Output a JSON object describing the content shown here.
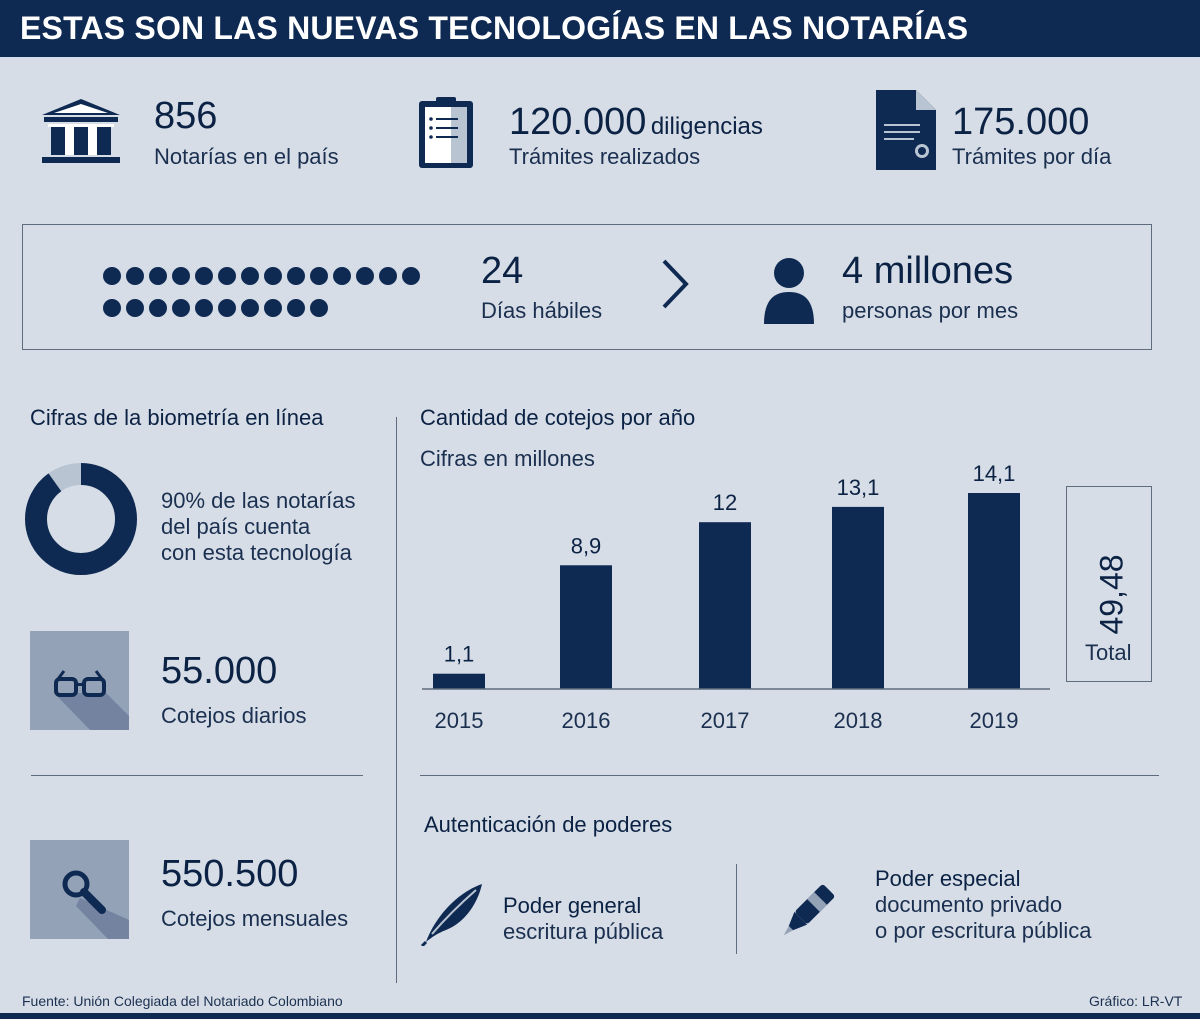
{
  "title": "ESTAS SON LAS NUEVAS TECNOLOGÍAS EN LAS NOTARÍAS",
  "stats": {
    "notarias": {
      "value": "856",
      "label": "Notarías en el país",
      "icon": "courthouse-icon"
    },
    "diligencias": {
      "value": "120.000",
      "unit": "diligencias",
      "label": "Trámites realizados",
      "icon": "clipboard-icon"
    },
    "tramites_dia": {
      "value": "175.000",
      "label": "Trámites por día",
      "icon": "document-seal-icon"
    }
  },
  "band": {
    "dias_value": "24",
    "dias_label": "Días hábiles",
    "personas_value": "4 millones",
    "personas_label": "personas por mes",
    "dot_count": 24
  },
  "biometria": {
    "title": "Cifras de la biometría en línea",
    "donut_percent": 90,
    "donut_text_1": "90% de las notarías",
    "donut_text_2": "del país cuenta",
    "donut_text_3": "con esta tecnología",
    "diarios_value": "55.000",
    "diarios_label": "Cotejos diarios",
    "mensuales_value": "550.500",
    "mensuales_label": "Cotejos mensuales"
  },
  "chart_data": {
    "type": "bar",
    "title": "Cantidad de cotejos por año",
    "subtitle": "Cifras en millones",
    "categories": [
      "2015",
      "2016",
      "2017",
      "2018",
      "2019"
    ],
    "values": [
      1.1,
      8.9,
      12,
      13.1,
      14.1
    ],
    "data_labels": [
      "1,1",
      "8,9",
      "12",
      "13,1",
      "14,1"
    ],
    "ylim": [
      0,
      14.1
    ],
    "total_value": "49,48",
    "total_label": "Total",
    "bar_color": "#0f2a52"
  },
  "poderes": {
    "title": "Autenticación de poderes",
    "general_title": "Poder general",
    "general_sub": "escritura pública",
    "especial_title": "Poder especial",
    "especial_sub_1": "documento privado",
    "especial_sub_2": "o por escritura pública"
  },
  "footer": {
    "source": "Fuente: Unión Colegiada del Notariado Colombiano",
    "credit": "Gráfico: LR-VT"
  },
  "colors": {
    "navy": "#0f2a52",
    "background": "#d6dde6",
    "tile": "#93a2b7"
  }
}
